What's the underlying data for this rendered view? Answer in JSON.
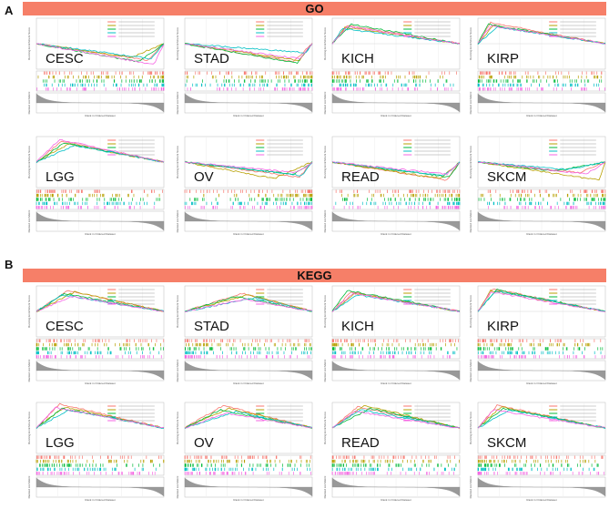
{
  "sections": [
    {
      "label": "A",
      "banner": "GO"
    },
    {
      "label": "B",
      "banner": "KEGG"
    }
  ],
  "axis_labels": {
    "y_top": "Running Enrichment Score",
    "y_bottom": "Ranked List Metric",
    "x": "Rank in Ordered Dataset"
  },
  "colors": [
    "#F8766D",
    "#B79F00",
    "#00BA38",
    "#00BFC4",
    "#F564E3"
  ],
  "chart_data": [
    {
      "type": "line",
      "section": "GO",
      "title": "CESC",
      "direction": "negative",
      "series_peak": [
        [
          0.88,
          -0.55
        ],
        [
          0.75,
          -0.45
        ],
        [
          0.8,
          -0.6
        ],
        [
          0.9,
          -0.5
        ],
        [
          0.92,
          -0.7
        ]
      ]
    },
    {
      "type": "line",
      "section": "GO",
      "title": "STAD",
      "direction": "negative",
      "series_peak": [
        [
          0.85,
          -0.6
        ],
        [
          0.9,
          -0.55
        ],
        [
          0.88,
          -0.65
        ],
        [
          0.95,
          -0.3
        ],
        [
          0.9,
          -0.5
        ]
      ]
    },
    {
      "type": "line",
      "section": "GO",
      "title": "KICH",
      "direction": "positive",
      "series_peak": [
        [
          0.12,
          0.6
        ],
        [
          0.1,
          0.55
        ],
        [
          0.15,
          0.65
        ],
        [
          0.08,
          0.5
        ],
        [
          0.12,
          0.58
        ]
      ]
    },
    {
      "type": "line",
      "section": "GO",
      "title": "KIRP",
      "direction": "positive",
      "series_peak": [
        [
          0.1,
          0.7
        ],
        [
          0.12,
          0.6
        ],
        [
          0.08,
          0.65
        ],
        [
          0.15,
          0.55
        ],
        [
          0.1,
          0.6
        ]
      ]
    },
    {
      "type": "line",
      "section": "GO",
      "title": "LGG",
      "direction": "positive",
      "series_peak": [
        [
          0.2,
          0.7
        ],
        [
          0.25,
          0.6
        ],
        [
          0.22,
          0.65
        ],
        [
          0.3,
          0.55
        ],
        [
          0.18,
          0.75
        ]
      ]
    },
    {
      "type": "line",
      "section": "GO",
      "title": "OV",
      "direction": "negative",
      "series_peak": [
        [
          0.9,
          -0.5
        ],
        [
          0.7,
          -0.55
        ],
        [
          0.85,
          -0.4
        ],
        [
          0.92,
          -0.45
        ],
        [
          0.88,
          -0.35
        ]
      ]
    },
    {
      "type": "line",
      "section": "GO",
      "title": "READ",
      "direction": "negative",
      "series_peak": [
        [
          0.9,
          -0.6
        ],
        [
          0.85,
          -0.55
        ],
        [
          0.92,
          -0.5
        ],
        [
          0.88,
          -0.45
        ],
        [
          0.9,
          -0.4
        ]
      ]
    },
    {
      "type": "line",
      "section": "GO",
      "title": "SKCM",
      "direction": "negative",
      "series_peak": [
        [
          0.8,
          -0.35
        ],
        [
          0.95,
          -0.6
        ],
        [
          0.6,
          -0.3
        ],
        [
          0.7,
          -0.25
        ],
        [
          0.85,
          -0.4
        ]
      ]
    },
    {
      "type": "line",
      "section": "KEGG",
      "title": "CESC",
      "direction": "positive",
      "series_peak": [
        [
          0.25,
          0.7
        ],
        [
          0.3,
          0.65
        ],
        [
          0.22,
          0.6
        ],
        [
          0.2,
          0.55
        ],
        [
          0.28,
          0.5
        ]
      ]
    },
    {
      "type": "line",
      "section": "KEGG",
      "title": "STAD",
      "direction": "positive",
      "series_peak": [
        [
          0.45,
          0.6
        ],
        [
          0.5,
          0.55
        ],
        [
          0.4,
          0.5
        ],
        [
          0.55,
          0.45
        ],
        [
          0.48,
          0.4
        ]
      ]
    },
    {
      "type": "line",
      "section": "KEGG",
      "title": "KICH",
      "direction": "positive",
      "series_peak": [
        [
          0.15,
          0.65
        ],
        [
          0.18,
          0.6
        ],
        [
          0.12,
          0.7
        ],
        [
          0.2,
          0.55
        ],
        [
          0.16,
          0.6
        ]
      ]
    },
    {
      "type": "line",
      "section": "KEGG",
      "title": "KIRP",
      "direction": "positive",
      "series_peak": [
        [
          0.12,
          0.75
        ],
        [
          0.1,
          0.7
        ],
        [
          0.15,
          0.72
        ],
        [
          0.14,
          0.68
        ],
        [
          0.1,
          0.65
        ]
      ]
    },
    {
      "type": "line",
      "section": "KEGG",
      "title": "LGG",
      "direction": "positive",
      "series_peak": [
        [
          0.18,
          0.8
        ],
        [
          0.22,
          0.7
        ],
        [
          0.2,
          0.65
        ],
        [
          0.25,
          0.6
        ],
        [
          0.15,
          0.68
        ]
      ]
    },
    {
      "type": "line",
      "section": "KEGG",
      "title": "OV",
      "direction": "positive",
      "series_peak": [
        [
          0.3,
          0.75
        ],
        [
          0.35,
          0.65
        ],
        [
          0.28,
          0.6
        ],
        [
          0.4,
          0.55
        ],
        [
          0.32,
          0.5
        ]
      ]
    },
    {
      "type": "line",
      "section": "KEGG",
      "title": "READ",
      "direction": "positive",
      "series_peak": [
        [
          0.2,
          0.7
        ],
        [
          0.25,
          0.75
        ],
        [
          0.3,
          0.65
        ],
        [
          0.22,
          0.6
        ],
        [
          0.18,
          0.55
        ]
      ]
    },
    {
      "type": "line",
      "section": "KEGG",
      "title": "SKCM",
      "direction": "positive",
      "series_peak": [
        [
          0.15,
          0.75
        ],
        [
          0.18,
          0.7
        ],
        [
          0.2,
          0.65
        ],
        [
          0.25,
          0.6
        ],
        [
          0.12,
          0.6
        ]
      ]
    }
  ]
}
